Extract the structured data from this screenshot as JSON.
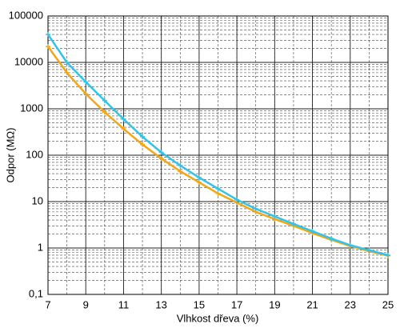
{
  "chart_data": {
    "type": "line",
    "y_label": "Odpor (MΩ)",
    "x_label": "Vlhkost dřeva (%)",
    "x": [
      7,
      8,
      9,
      10,
      11,
      12,
      13,
      14,
      15,
      16,
      17,
      18,
      19,
      20,
      21,
      22,
      23,
      24,
      25
    ],
    "series": [
      {
        "color": "#f0a818",
        "values": [
          22000,
          6000,
          2100,
          850,
          370,
          170,
          85,
          45,
          26,
          15,
          9.5,
          6,
          4.2,
          3,
          2.1,
          1.5,
          1.1,
          0.85,
          0.68
        ]
      },
      {
        "color": "#35c2e8",
        "values": [
          40000,
          10000,
          3800,
          1500,
          600,
          250,
          115,
          60,
          33,
          19,
          11,
          7,
          4.8,
          3.3,
          2.3,
          1.6,
          1.15,
          0.9,
          0.7
        ]
      }
    ],
    "xlim": [
      7,
      25
    ],
    "xticks": [
      7,
      9,
      11,
      13,
      15,
      17,
      19,
      21,
      23,
      25
    ],
    "ylim": [
      0.1,
      100000
    ],
    "y_scale": "log",
    "yticks": [
      {
        "value": 0.1,
        "label": "0,1"
      },
      1,
      10,
      100,
      1000,
      10000,
      100000
    ],
    "grid": true,
    "minor_grid": true
  }
}
